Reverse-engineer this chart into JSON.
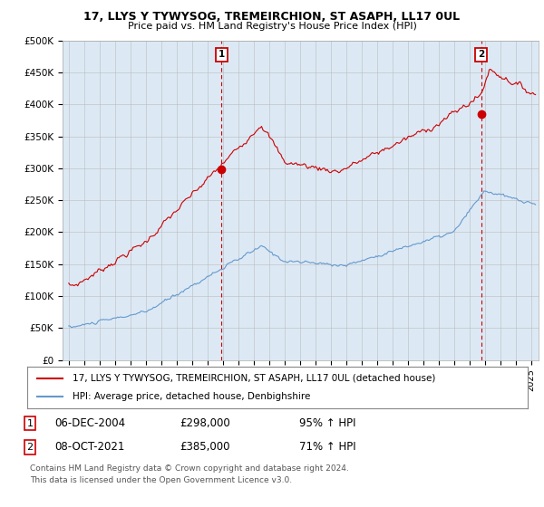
{
  "title": "17, LLYS Y TYWYSOG, TREMEIRCHION, ST ASAPH, LL17 0UL",
  "subtitle": "Price paid vs. HM Land Registry's House Price Index (HPI)",
  "ylabel_ticks": [
    "£0",
    "£50K",
    "£100K",
    "£150K",
    "£200K",
    "£250K",
    "£300K",
    "£350K",
    "£400K",
    "£450K",
    "£500K"
  ],
  "ytick_values": [
    0,
    50000,
    100000,
    150000,
    200000,
    250000,
    300000,
    350000,
    400000,
    450000,
    500000
  ],
  "ylim": [
    0,
    500000
  ],
  "xlim_start": 1994.6,
  "xlim_end": 2025.5,
  "red_line_color": "#cc0000",
  "blue_line_color": "#6699cc",
  "chart_bg_color": "#dce9f5",
  "vline_color": "#cc0000",
  "vline_style": "--",
  "transaction1": {
    "year_float": 2004.92,
    "price": 298000,
    "label": "1",
    "date": "06-DEC-2004"
  },
  "transaction2": {
    "year_float": 2021.77,
    "price": 385000,
    "label": "2",
    "date": "08-OCT-2021"
  },
  "legend_entry1": "17, LLYS Y TYWYSOG, TREMEIRCHION, ST ASAPH, LL17 0UL (detached house)",
  "legend_entry2": "HPI: Average price, detached house, Denbighshire",
  "footer1": "Contains HM Land Registry data © Crown copyright and database right 2024.",
  "footer2": "This data is licensed under the Open Government Licence v3.0.",
  "annotation1_date": "06-DEC-2004",
  "annotation1_price": "£298,000",
  "annotation1_pct": "95% ↑ HPI",
  "annotation2_date": "08-OCT-2021",
  "annotation2_price": "£385,000",
  "annotation2_pct": "71% ↑ HPI",
  "background_color": "#ffffff",
  "grid_color": "#bbbbbb"
}
